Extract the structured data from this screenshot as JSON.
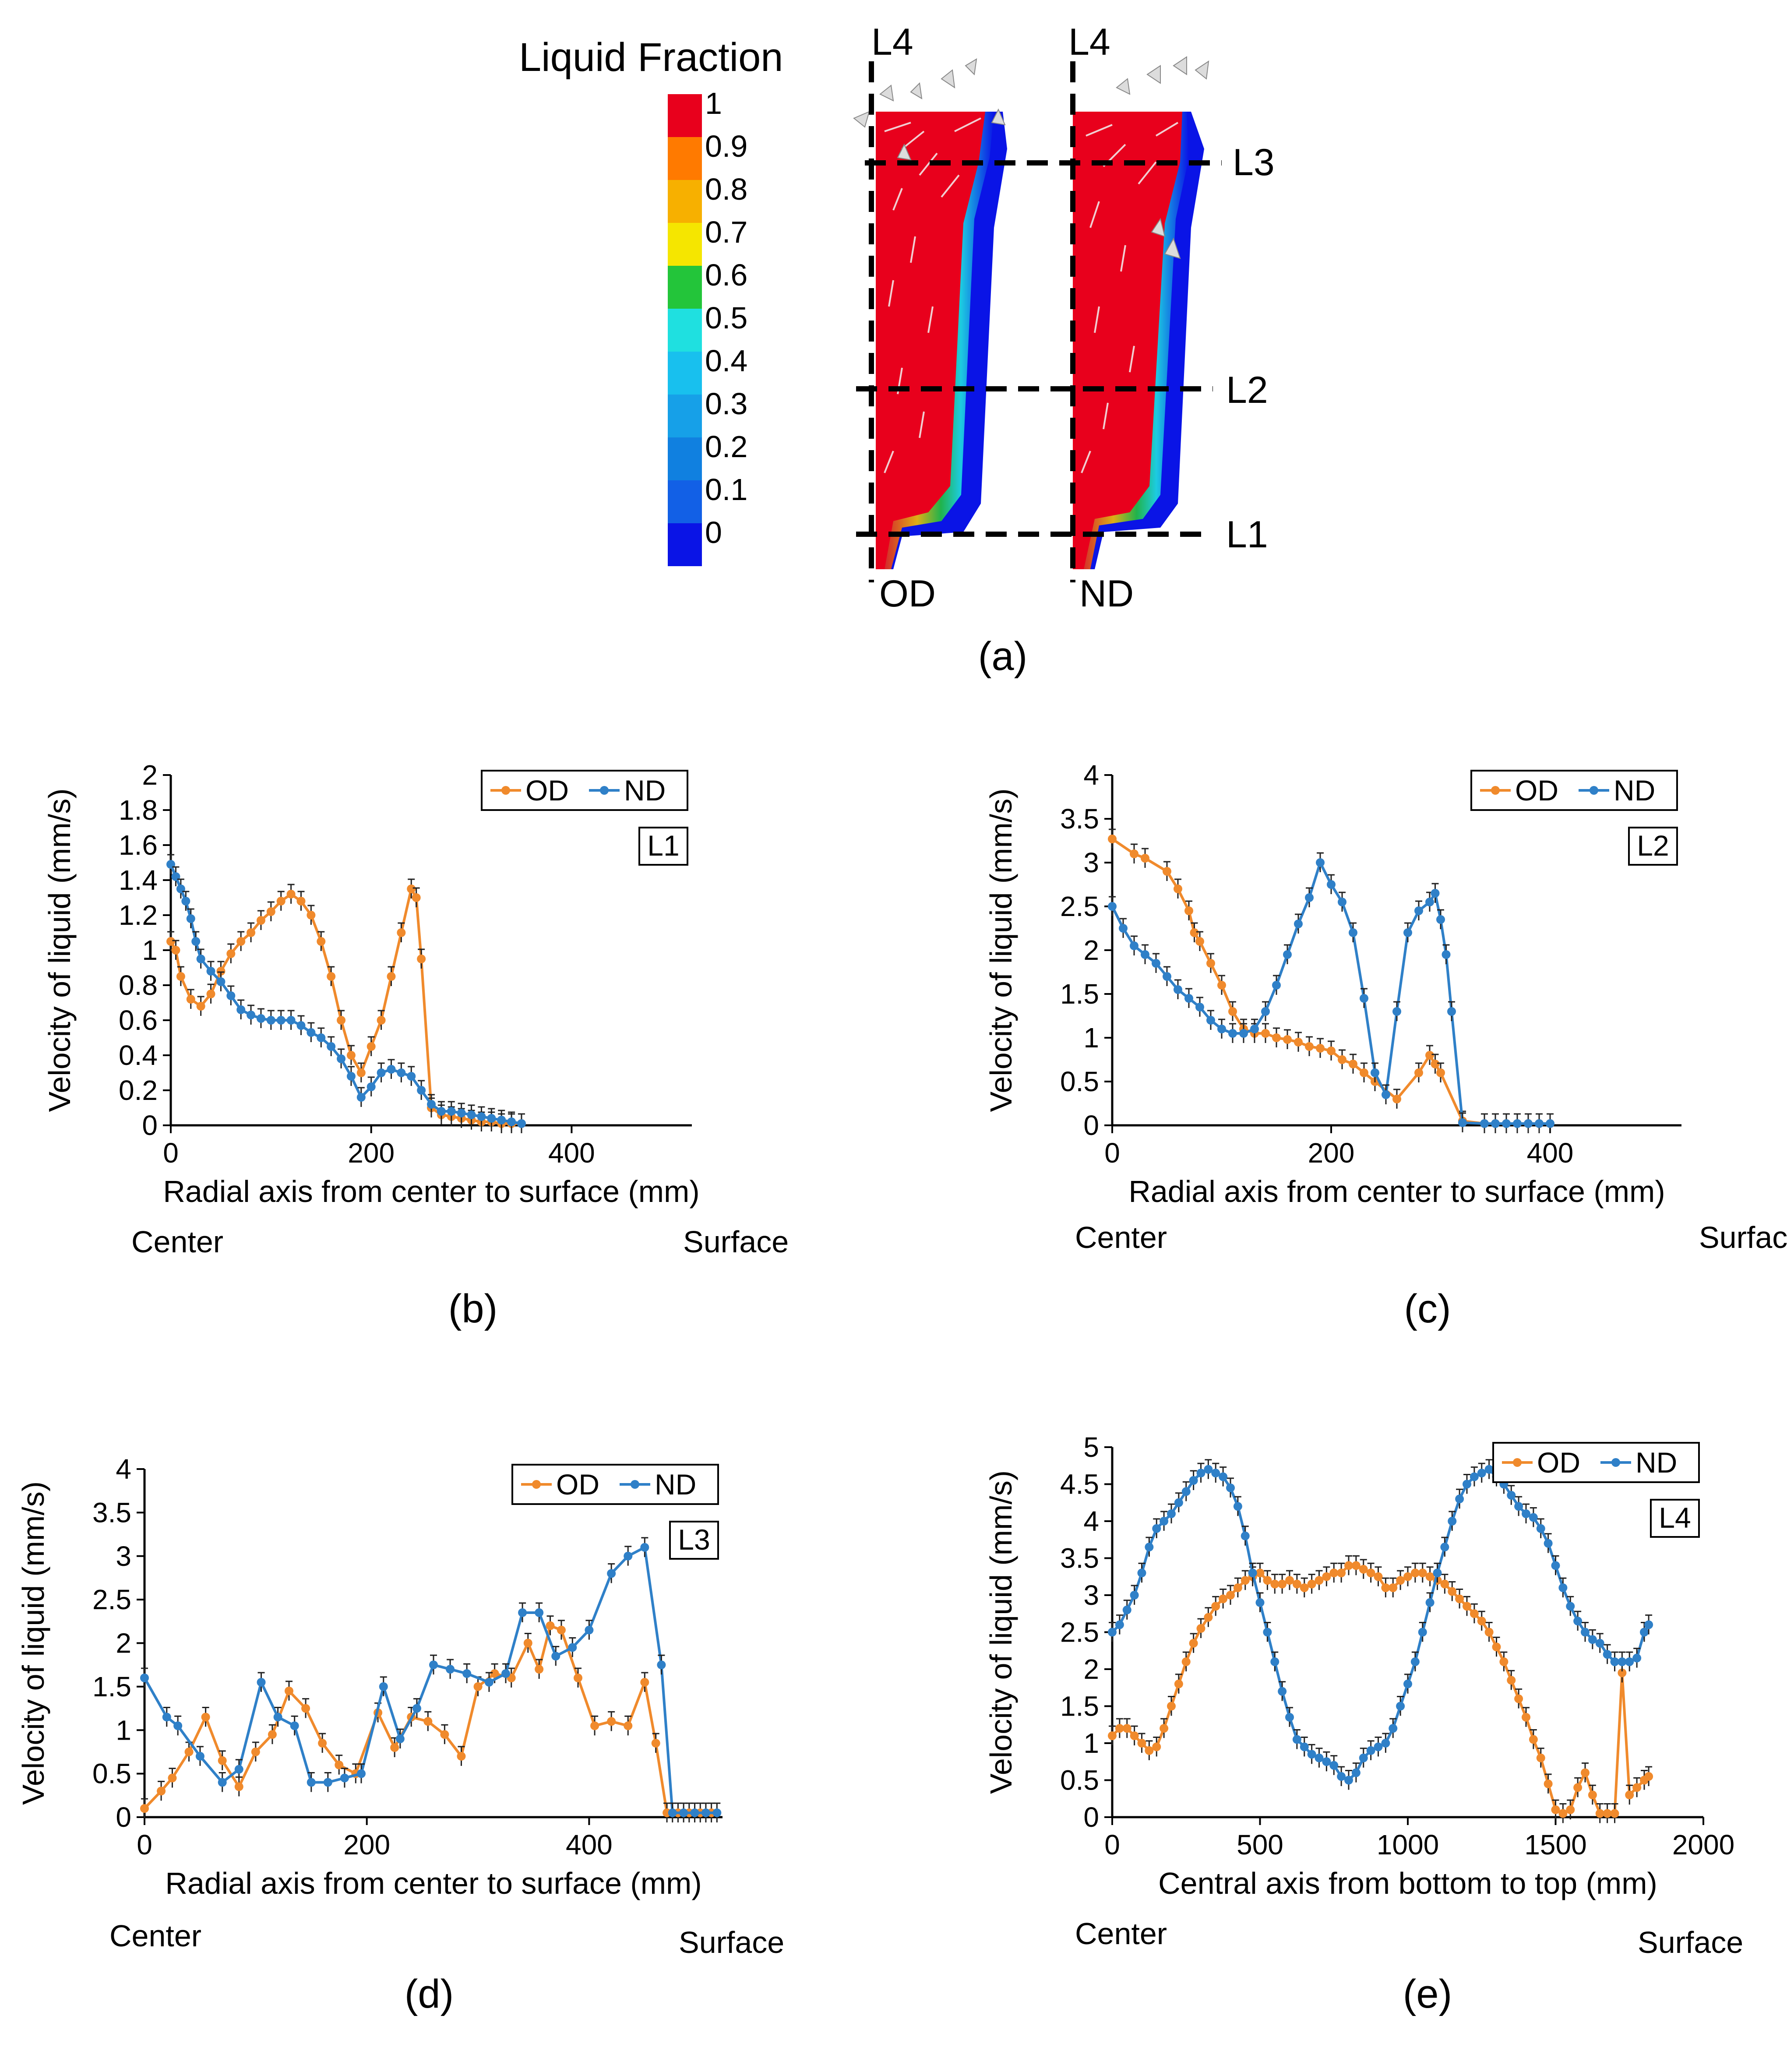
{
  "figure": {
    "panel_a": {
      "caption": "(a)",
      "legend_title": "Liquid Fraction",
      "scale_labels": [
        "1",
        "0.9",
        "0.8",
        "0.7",
        "0.6",
        "0.5",
        "0.4",
        "0.3",
        "0.2",
        "0.1",
        "0"
      ],
      "scale_colors": [
        "#e8001c",
        "#ff7a00",
        "#f7b000",
        "#f5e600",
        "#23c53a",
        "#1fe0e0",
        "#18c0ee",
        "#16a0e8",
        "#1080e0",
        "#1260e6",
        "#0a14e6"
      ],
      "line_labels": {
        "l4a": "L4",
        "l4b": "L4",
        "l3": "L3",
        "l2": "L2",
        "l1": "L1"
      },
      "model_labels": {
        "od": "OD",
        "nd": "ND"
      }
    },
    "center_label": "Center",
    "surface_label": "Surface"
  },
  "colors": {
    "od": "#f08a2c",
    "nd": "#2f80c8"
  },
  "chart_data": [
    {
      "id": "b",
      "caption": "(b)",
      "type": "line",
      "line_label": "L1",
      "xlabel": "Radial axis from center to surface (mm)",
      "ylabel": "Velocity of liquid (mm/s)",
      "xlim": [
        0,
        520
      ],
      "xticks": [
        0,
        200,
        400
      ],
      "xtick_labels": [
        "0",
        "200",
        "400"
      ],
      "ylim": [
        0,
        2
      ],
      "yticks": [
        0,
        0.2,
        0.4,
        0.6,
        0.8,
        1,
        1.2,
        1.4,
        1.6,
        1.8,
        2
      ],
      "ytick_labels": [
        "0",
        "0.2",
        "0.4",
        "0.6",
        "0.8",
        "1",
        "1.2",
        "1.4",
        "1.6",
        "1.8",
        "2"
      ],
      "series": [
        {
          "name": "OD",
          "color": "#f08a2c",
          "x": [
            0,
            5,
            10,
            20,
            30,
            40,
            50,
            60,
            70,
            80,
            90,
            100,
            110,
            120,
            130,
            140,
            150,
            160,
            170,
            180,
            190,
            200,
            210,
            220,
            230,
            240,
            245,
            250,
            260,
            270,
            280,
            290,
            300,
            310,
            320,
            330,
            340,
            350
          ],
          "y": [
            1.05,
            1.0,
            0.85,
            0.72,
            0.68,
            0.75,
            0.88,
            0.98,
            1.05,
            1.1,
            1.17,
            1.22,
            1.28,
            1.32,
            1.28,
            1.2,
            1.05,
            0.85,
            0.6,
            0.4,
            0.3,
            0.45,
            0.6,
            0.85,
            1.1,
            1.35,
            1.3,
            0.95,
            0.1,
            0.06,
            0.05,
            0.04,
            0.03,
            0.02,
            0.02,
            0.01,
            0.01,
            0.01
          ]
        },
        {
          "name": "ND",
          "color": "#2f80c8",
          "x": [
            0,
            5,
            10,
            15,
            20,
            25,
            30,
            40,
            50,
            60,
            70,
            80,
            90,
            100,
            110,
            120,
            130,
            140,
            150,
            160,
            170,
            180,
            190,
            200,
            210,
            220,
            230,
            240,
            250,
            260,
            270,
            280,
            290,
            300,
            310,
            320,
            330,
            340,
            350
          ],
          "y": [
            1.49,
            1.42,
            1.35,
            1.28,
            1.18,
            1.05,
            0.95,
            0.88,
            0.82,
            0.74,
            0.66,
            0.63,
            0.61,
            0.6,
            0.6,
            0.6,
            0.57,
            0.53,
            0.5,
            0.45,
            0.38,
            0.28,
            0.16,
            0.22,
            0.3,
            0.32,
            0.3,
            0.28,
            0.2,
            0.12,
            0.08,
            0.08,
            0.07,
            0.06,
            0.05,
            0.04,
            0.03,
            0.02,
            0.01
          ]
        }
      ]
    },
    {
      "id": "c",
      "caption": "(c)",
      "type": "line",
      "line_label": "L2",
      "xlabel": "Radial axis from center to surface (mm)",
      "ylabel": "Velocity of liquid (mm/s)",
      "xlim": [
        0,
        520
      ],
      "xticks": [
        0,
        200,
        400
      ],
      "xtick_labels": [
        "0",
        "200",
        "400"
      ],
      "ylim": [
        0,
        4
      ],
      "yticks": [
        0,
        0.5,
        1,
        1.5,
        2,
        2.5,
        3,
        3.5,
        4
      ],
      "ytick_labels": [
        "0",
        "0.5",
        "1",
        "1.5",
        "2",
        "2.5",
        "3",
        "3.5",
        "4"
      ],
      "series": [
        {
          "name": "OD",
          "color": "#f08a2c",
          "x": [
            0,
            20,
            30,
            50,
            60,
            70,
            75,
            80,
            90,
            100,
            110,
            120,
            130,
            140,
            150,
            160,
            170,
            180,
            190,
            200,
            210,
            220,
            230,
            240,
            260,
            280,
            290,
            295,
            300,
            320,
            340,
            350,
            360,
            370,
            380,
            390,
            400
          ],
          "y": [
            3.27,
            3.1,
            3.05,
            2.9,
            2.7,
            2.45,
            2.2,
            2.1,
            1.85,
            1.6,
            1.3,
            1.1,
            1.05,
            1.05,
            1.0,
            0.98,
            0.95,
            0.9,
            0.88,
            0.85,
            0.75,
            0.7,
            0.6,
            0.5,
            0.3,
            0.6,
            0.8,
            0.7,
            0.6,
            0.05,
            0.02,
            0.02,
            0.02,
            0.02,
            0.02,
            0.02,
            0.02
          ]
        },
        {
          "name": "ND",
          "color": "#2f80c8",
          "x": [
            0,
            10,
            20,
            30,
            40,
            50,
            60,
            70,
            80,
            90,
            100,
            110,
            120,
            130,
            140,
            150,
            160,
            170,
            180,
            190,
            200,
            210,
            220,
            230,
            240,
            250,
            260,
            270,
            280,
            290,
            295,
            300,
            305,
            310,
            320,
            340,
            350,
            360,
            370,
            380,
            390,
            400
          ],
          "y": [
            2.5,
            2.25,
            2.05,
            1.95,
            1.85,
            1.7,
            1.55,
            1.45,
            1.35,
            1.2,
            1.1,
            1.05,
            1.05,
            1.1,
            1.3,
            1.6,
            1.95,
            2.3,
            2.6,
            3.0,
            2.75,
            2.55,
            2.2,
            1.45,
            0.6,
            0.35,
            1.3,
            2.2,
            2.45,
            2.55,
            2.65,
            2.35,
            1.95,
            1.3,
            0.03,
            0.02,
            0.02,
            0.02,
            0.02,
            0.02,
            0.02,
            0.02
          ]
        }
      ]
    },
    {
      "id": "d",
      "caption": "(d)",
      "type": "line",
      "line_label": "L3",
      "xlabel": "Radial axis from center to surface (mm)",
      "ylabel": "Velocity of liquid (mm/s)",
      "xlim": [
        0,
        520
      ],
      "xticks": [
        0,
        200,
        400
      ],
      "xtick_labels": [
        "0",
        "200",
        "400"
      ],
      "ylim": [
        0,
        4
      ],
      "yticks": [
        0,
        0.5,
        1,
        1.5,
        2,
        2.5,
        3,
        3.5,
        4
      ],
      "ytick_labels": [
        "0",
        "0.5",
        "1",
        "1.5",
        "2",
        "2.5",
        "3",
        "3.5",
        "4"
      ],
      "series": [
        {
          "name": "OD",
          "color": "#f08a2c",
          "x": [
            0,
            15,
            25,
            40,
            55,
            70,
            85,
            100,
            115,
            130,
            145,
            160,
            175,
            190,
            210,
            225,
            240,
            255,
            270,
            285,
            300,
            315,
            330,
            345,
            355,
            365,
            375,
            390,
            405,
            420,
            435,
            450,
            460,
            470,
            480,
            490,
            500,
            510
          ],
          "y": [
            0.1,
            0.3,
            0.45,
            0.75,
            1.15,
            0.65,
            0.35,
            0.75,
            0.95,
            1.45,
            1.25,
            0.85,
            0.6,
            0.5,
            1.2,
            0.8,
            1.15,
            1.1,
            0.95,
            0.7,
            1.5,
            1.65,
            1.6,
            2.0,
            1.7,
            2.2,
            2.15,
            1.6,
            1.05,
            1.1,
            1.05,
            1.55,
            0.85,
            0.05,
            0.05,
            0.05,
            0.05,
            0.05
          ]
        },
        {
          "name": "ND",
          "color": "#2f80c8",
          "x": [
            0,
            20,
            30,
            50,
            70,
            85,
            105,
            120,
            135,
            150,
            165,
            180,
            195,
            215,
            230,
            245,
            260,
            275,
            290,
            310,
            325,
            340,
            355,
            370,
            385,
            400,
            420,
            435,
            450,
            465,
            475,
            485,
            495,
            505,
            515
          ],
          "y": [
            1.6,
            1.15,
            1.05,
            0.7,
            0.4,
            0.55,
            1.55,
            1.15,
            1.05,
            0.4,
            0.4,
            0.45,
            0.5,
            1.5,
            0.9,
            1.25,
            1.75,
            1.7,
            1.65,
            1.55,
            1.65,
            2.35,
            2.35,
            1.85,
            1.95,
            2.15,
            2.8,
            3.0,
            3.1,
            1.75,
            0.05,
            0.05,
            0.05,
            0.05,
            0.05
          ]
        }
      ]
    },
    {
      "id": "e",
      "caption": "(e)",
      "type": "line",
      "line_label": "L4",
      "xlabel": "Central axis from bottom to top (mm)",
      "ylabel": "Velocity of liquid (mm/s)",
      "xlim": [
        0,
        2000
      ],
      "xticks": [
        0,
        500,
        1000,
        1500,
        2000
      ],
      "xtick_labels": [
        "0",
        "500",
        "1000",
        "1500",
        "2000"
      ],
      "ylim": [
        0,
        5
      ],
      "yticks": [
        0,
        0.5,
        1,
        1.5,
        2,
        2.5,
        3,
        3.5,
        4,
        4.5,
        5
      ],
      "ytick_labels": [
        "0",
        "0.5",
        "1",
        "1.5",
        "2",
        "2.5",
        "3",
        "3.5",
        "4",
        "4.5",
        "5"
      ],
      "series": [
        {
          "name": "OD",
          "color": "#f08a2c",
          "x": [
            0,
            25,
            50,
            75,
            100,
            125,
            150,
            175,
            200,
            225,
            250,
            275,
            300,
            325,
            350,
            375,
            400,
            425,
            450,
            475,
            500,
            525,
            550,
            575,
            600,
            625,
            650,
            675,
            700,
            725,
            750,
            775,
            800,
            825,
            850,
            875,
            900,
            925,
            950,
            975,
            1000,
            1025,
            1050,
            1075,
            1100,
            1125,
            1150,
            1175,
            1200,
            1225,
            1250,
            1275,
            1300,
            1325,
            1350,
            1375,
            1400,
            1425,
            1450,
            1475,
            1500,
            1525,
            1550,
            1575,
            1600,
            1625,
            1650,
            1675,
            1700,
            1725,
            1750,
            1775,
            1800,
            1815
          ],
          "y": [
            1.1,
            1.2,
            1.2,
            1.1,
            1.0,
            0.9,
            0.95,
            1.2,
            1.5,
            1.8,
            2.1,
            2.35,
            2.55,
            2.7,
            2.85,
            2.95,
            3.0,
            3.1,
            3.2,
            3.25,
            3.3,
            3.2,
            3.15,
            3.15,
            3.2,
            3.15,
            3.1,
            3.15,
            3.2,
            3.25,
            3.3,
            3.3,
            3.4,
            3.4,
            3.35,
            3.3,
            3.25,
            3.1,
            3.1,
            3.2,
            3.25,
            3.3,
            3.3,
            3.25,
            3.2,
            3.15,
            3.05,
            2.95,
            2.85,
            2.75,
            2.65,
            2.5,
            2.3,
            2.1,
            1.85,
            1.6,
            1.35,
            1.05,
            0.8,
            0.45,
            0.1,
            0.05,
            0.1,
            0.4,
            0.6,
            0.3,
            0.05,
            0.05,
            0.05,
            1.95,
            0.3,
            0.4,
            0.5,
            0.55
          ]
        },
        {
          "name": "ND",
          "color": "#2f80c8",
          "x": [
            0,
            25,
            50,
            75,
            100,
            125,
            150,
            175,
            200,
            225,
            250,
            275,
            300,
            325,
            350,
            375,
            400,
            425,
            450,
            475,
            500,
            525,
            550,
            575,
            600,
            625,
            650,
            675,
            700,
            725,
            750,
            775,
            800,
            825,
            850,
            875,
            900,
            925,
            950,
            975,
            1000,
            1025,
            1050,
            1075,
            1100,
            1125,
            1150,
            1175,
            1200,
            1225,
            1250,
            1275,
            1300,
            1325,
            1350,
            1375,
            1400,
            1425,
            1450,
            1475,
            1500,
            1525,
            1550,
            1575,
            1600,
            1625,
            1650,
            1675,
            1700,
            1725,
            1750,
            1775,
            1800,
            1815
          ],
          "y": [
            2.5,
            2.6,
            2.8,
            3.0,
            3.3,
            3.65,
            3.9,
            4.0,
            4.1,
            4.25,
            4.4,
            4.55,
            4.65,
            4.7,
            4.65,
            4.6,
            4.45,
            4.2,
            3.8,
            3.3,
            2.9,
            2.5,
            2.1,
            1.7,
            1.35,
            1.05,
            0.95,
            0.85,
            0.8,
            0.75,
            0.7,
            0.55,
            0.5,
            0.6,
            0.8,
            0.9,
            0.95,
            1.0,
            1.2,
            1.5,
            1.8,
            2.1,
            2.5,
            2.9,
            3.3,
            3.65,
            4.0,
            4.3,
            4.5,
            4.6,
            4.65,
            4.7,
            4.6,
            4.5,
            4.35,
            4.2,
            4.1,
            4.05,
            3.9,
            3.7,
            3.4,
            3.1,
            2.85,
            2.65,
            2.5,
            2.4,
            2.35,
            2.2,
            2.1,
            2.1,
            2.1,
            2.15,
            2.5,
            2.6
          ]
        }
      ]
    }
  ]
}
